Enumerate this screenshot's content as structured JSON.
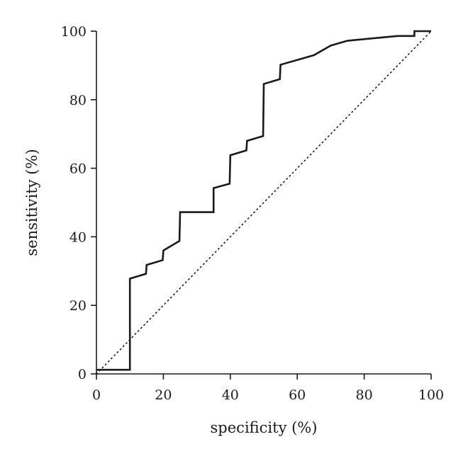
{
  "chart_data": {
    "type": "line",
    "title": "",
    "xlabel": "specificity (%)",
    "ylabel": "sensitivity (%)",
    "xlim": [
      0,
      100
    ],
    "ylim": [
      0,
      100
    ],
    "xticks": [
      0,
      20,
      40,
      60,
      80,
      100
    ],
    "yticks": [
      0,
      20,
      40,
      60,
      80,
      100
    ],
    "grid": false,
    "legend": "none",
    "series": [
      {
        "style": "solid",
        "color": "#1a1a1a",
        "x": [
          0,
          10,
          10,
          14.8,
          15,
          19.8,
          20,
          24.8,
          25,
          35,
          35,
          39.8,
          40,
          44.8,
          45,
          49.8,
          50,
          54.8,
          55,
          65,
          70,
          75,
          90,
          95,
          95,
          100
        ],
        "y": [
          1.2,
          1.2,
          27.8,
          29.2,
          31.8,
          33.2,
          36.0,
          38.8,
          47.2,
          47.2,
          54.2,
          55.5,
          63.8,
          65.2,
          68.0,
          69.4,
          84.6,
          86.0,
          90.2,
          93.0,
          95.8,
          97.2,
          98.6,
          98.6,
          100,
          100
        ]
      },
      {
        "style": "dotted",
        "color": "#1a1a1a",
        "x": [
          0,
          100
        ],
        "y": [
          0,
          100
        ]
      }
    ]
  }
}
